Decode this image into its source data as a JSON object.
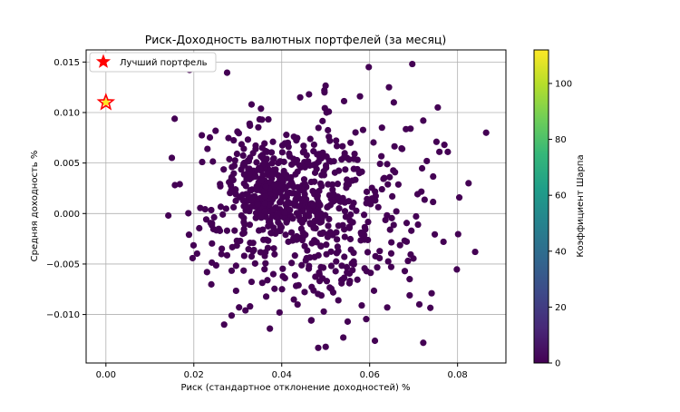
{
  "chart_data": {
    "type": "scatter",
    "title": "Риск-Доходность валютных портфелей (за месяц)",
    "xlabel": "Риск (стандартное отклонение доходностей) %",
    "ylabel": "Средняя доходность %",
    "xlim": [
      -0.0045,
      0.091
    ],
    "ylim": [
      -0.0148,
      0.0162
    ],
    "xticks": [
      "0.00",
      "0.02",
      "0.04",
      "0.06",
      "0.08"
    ],
    "xtick_values": [
      0.0,
      0.02,
      0.04,
      0.06,
      0.08
    ],
    "yticks": [
      "−0.010",
      "−0.005",
      "0.000",
      "0.005",
      "0.010",
      "0.015"
    ],
    "ytick_values": [
      -0.01,
      -0.005,
      0.0,
      0.005,
      0.01,
      0.015
    ],
    "grid": true,
    "legend": {
      "position": "top-left",
      "entries": [
        {
          "label": "Лучший портфель",
          "marker": "star",
          "color": "#ff0000"
        }
      ]
    },
    "colorbar": {
      "label": "Коэффициент Шарпа",
      "range": [
        0,
        112
      ],
      "ticks": [
        "0",
        "20",
        "40",
        "60",
        "80",
        "100"
      ],
      "tick_values": [
        0,
        20,
        40,
        60,
        80,
        100
      ],
      "colormap": [
        "#440154",
        "#482878",
        "#3e4989",
        "#31688e",
        "#26828e",
        "#1f9e89",
        "#35b779",
        "#6ece58",
        "#b5de2b",
        "#fde725"
      ]
    },
    "point_color": "#440154",
    "best_portfolio": {
      "x": 0.0,
      "y": 0.011,
      "sharpe": 112,
      "color": "#fde725",
      "marker_color": "#ff0000"
    },
    "scatter_cluster": {
      "x_mean": 0.046,
      "x_sd": 0.0115,
      "y_mean": 0.0003,
      "y_sd": 0.0043,
      "count": 760
    },
    "scatter_points": [
      [
        0.0865,
        0.008
      ],
      [
        0.084,
        -0.0038
      ],
      [
        0.0825,
        0.003
      ],
      [
        0.077,
        0.0068
      ],
      [
        0.0768,
        -0.0028
      ],
      [
        0.0755,
        0.0105
      ],
      [
        0.0722,
        -0.0128
      ],
      [
        0.0722,
        0.0092
      ],
      [
        0.0697,
        0.0148
      ],
      [
        0.0693,
        0.0084
      ],
      [
        0.0655,
        0.011
      ],
      [
        0.0644,
        0.0125
      ],
      [
        0.0598,
        0.0145
      ],
      [
        0.0612,
        -0.0126
      ],
      [
        0.055,
        -0.0107
      ],
      [
        0.0483,
        -0.0133
      ],
      [
        0.05,
        -0.0132
      ],
      [
        0.0467,
        -0.0106
      ],
      [
        0.0373,
        -0.0114
      ],
      [
        0.0269,
        -0.011
      ],
      [
        0.0286,
        -0.0101
      ],
      [
        0.0142,
        -0.0002
      ],
      [
        0.0168,
        0.0029
      ],
      [
        0.0189,
        -0.0021
      ],
      [
        0.0231,
        0.0064
      ],
      [
        0.0219,
        0.0051
      ],
      [
        0.023,
        -0.0058
      ],
      [
        0.0741,
        -0.0079
      ],
      [
        0.0713,
        -0.009
      ],
      [
        0.0691,
        -0.0081
      ],
      [
        0.0462,
        0.0118
      ],
      [
        0.0502,
        0.01
      ],
      [
        0.0578,
        0.0116
      ],
      [
        0.0442,
        0.0115
      ],
      [
        0.073,
        0.0052
      ],
      [
        0.0752,
        0.0071
      ],
      [
        0.068,
        -0.0057
      ],
      [
        0.0691,
        -0.0065
      ],
      [
        0.0355,
        0.0093
      ],
      [
        0.0497,
        0.0122
      ],
      [
        0.071,
        -0.0011
      ],
      [
        0.064,
        -0.0093
      ],
      [
        0.0628,
        0.0085
      ],
      [
        0.0582,
        -0.0091
      ],
      [
        0.0395,
        -0.0098
      ]
    ],
    "seed": 20240517
  }
}
